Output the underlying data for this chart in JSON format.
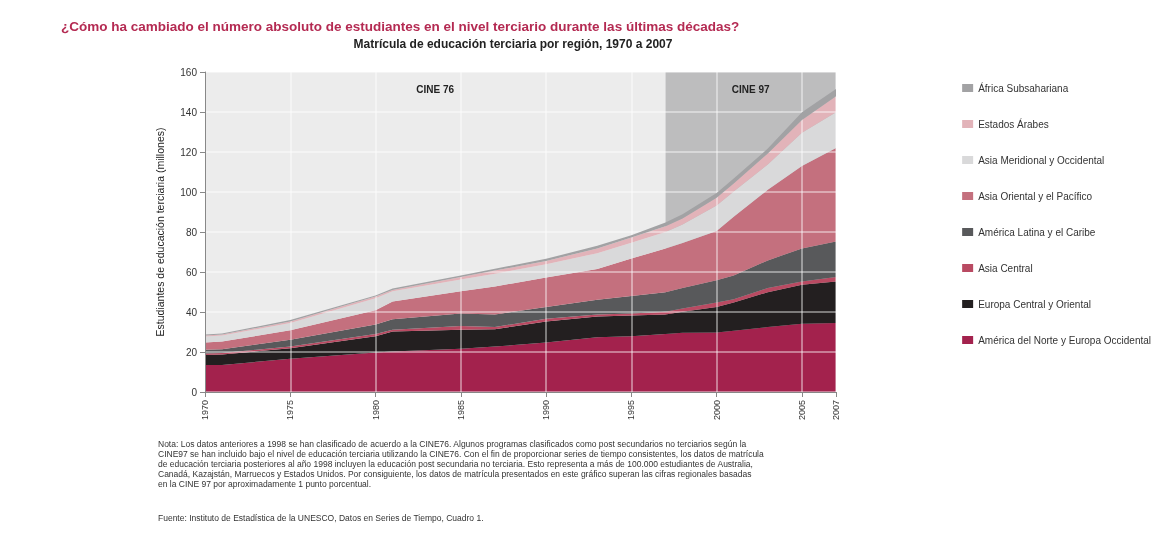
{
  "chart_data": {
    "type": "area",
    "stacked": true,
    "title": "¿Cómo ha cambiado el número absoluto de estudiantes en el nivel terciario durante las últimas décadas?",
    "subtitle": "Matrícula de educación terciaria por región, 1970 a 2007",
    "ylabel": "Estudiantes de educación terciaria (millones)",
    "x": [
      1970,
      1971,
      1975,
      1980,
      1981,
      1985,
      1987,
      1990,
      1993,
      1995,
      1997,
      1998,
      2000,
      2001,
      2003,
      2005,
      2007
    ],
    "xlim": [
      1970,
      2007
    ],
    "xticks": [
      1970,
      1975,
      1980,
      1985,
      1990,
      1995,
      2000,
      2005,
      2007
    ],
    "ylim": [
      0,
      160
    ],
    "yticks": [
      0,
      20,
      40,
      60,
      80,
      100,
      120,
      140,
      160
    ],
    "grid": true,
    "legend": "right",
    "series": [
      {
        "name": "América del Norte y Europa Occidental",
        "color": "#a3224d",
        "values": [
          13.5,
          13.5,
          16.6,
          19.8,
          20.3,
          21.6,
          22.7,
          24.7,
          27.4,
          27.9,
          29,
          29.6,
          29.8,
          30.6,
          32.5,
          34.1,
          34.5
        ]
      },
      {
        "name": "Europa Central y Oriental",
        "color": "#231f20",
        "values": [
          5,
          5.2,
          5.3,
          8.1,
          10,
          9.5,
          8.7,
          10.6,
          10.3,
          10.3,
          9.8,
          10.5,
          12.7,
          14.2,
          17.4,
          19.5,
          20.7
        ]
      },
      {
        "name": "Asia Central",
        "color": "#b94a62",
        "values": [
          0.8,
          0.8,
          0.8,
          1.1,
          0.8,
          1.9,
          1.1,
          1.3,
          1.1,
          1.1,
          1.3,
          1.6,
          2.3,
          1.6,
          2.1,
          1.6,
          2.3
        ]
      },
      {
        "name": "América Latina y el Caribe",
        "color": "#58595b",
        "values": [
          1.8,
          1.9,
          3.4,
          4.8,
          5.3,
          6.3,
          6.3,
          5.9,
          7.3,
          8.7,
          9.8,
          10.3,
          11.1,
          11.9,
          13.8,
          16.6,
          17.8
        ]
      },
      {
        "name": "Asia Oriental y el Pacífico",
        "color": "#c4707e",
        "values": [
          3.7,
          3.8,
          4.8,
          7.1,
          8.9,
          11.1,
          14,
          14.7,
          15.4,
          18.7,
          21.9,
          22.5,
          24.6,
          29.3,
          35.3,
          41.2,
          46.7
        ]
      },
      {
        "name": "Asia Meridional y Occidental",
        "color": "#d9d9da",
        "values": [
          3,
          3,
          3.6,
          6,
          5.1,
          5.9,
          6.3,
          6.7,
          7.9,
          7.9,
          8.2,
          9.2,
          12.7,
          12.7,
          12.7,
          16.6,
          17.9
        ]
      },
      {
        "name": "Estados Árabes",
        "color": "#e2b3b9",
        "values": [
          0.5,
          0.5,
          0.8,
          0.8,
          0.6,
          1.2,
          1.6,
          1.6,
          2.4,
          2.7,
          2.9,
          3.1,
          3.9,
          4,
          5.5,
          6.4,
          8
        ]
      },
      {
        "name": "África Subsahariana",
        "color": "#a2a2a4",
        "values": [
          0.5,
          0.5,
          0.7,
          0.6,
          0.7,
          0.8,
          0.9,
          1.1,
          1.3,
          1.1,
          1.9,
          2.1,
          2.4,
          2.4,
          2.4,
          3.9,
          3.6
        ]
      }
    ],
    "bands": [
      {
        "axis": "x",
        "from": 1970,
        "to": 1997,
        "label": "CINE 76",
        "color": "#ececec"
      },
      {
        "axis": "x",
        "from": 1997,
        "to": 2007,
        "label": "CINE 97",
        "color": "#bdbdbe"
      }
    ],
    "annotations": [
      "Nota: Los datos anteriores a 1998 se han clasificado de acuerdo a la CINE76. Algunos programas clasificados como post secundarios no terciarios según la CINE97 se han incluido bajo el nivel de educación terciaria utilizando la CINE76. Con el fin de proporcionar series de tiempo consistentes, los datos de matrícula de educación terciaria posteriores al año 1998 incluyen la educación post secundaria no terciaria. Esto representa a más de 100.000 estudiantes de Australia, Canadá, Kazajstán, Marruecos y Estados Unidos. Por consiguiente, los datos de matrícula presentados en este gráfico superan las cifras regionales basadas en la CINE 97 por aproximadamente 1 punto porcentual.",
      "Fuente: Instituto de Estadística de la UNESCO, Datos en Series de Tiempo, Cuadro 1."
    ]
  }
}
